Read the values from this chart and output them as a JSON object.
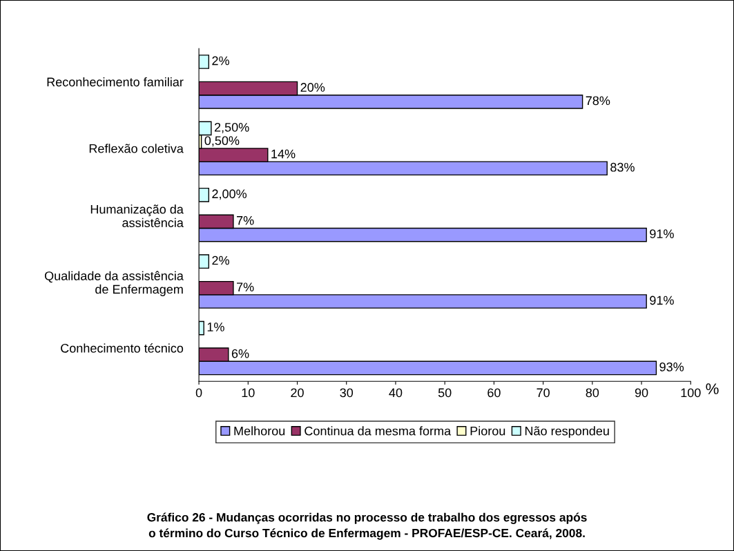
{
  "chart_data": {
    "type": "bar",
    "orientation": "horizontal",
    "title": "Gráfico 26 - Mudanças ocorridas no processo de trabalho dos egressos após\no término do Curso Técnico de Enfermagem - PROFAE/ESP-CE. Ceará, 2008.",
    "xlabel": "%",
    "categories": [
      "Reconhecimento familiar",
      "Reflexão coletiva",
      "Humanização da\nassistência",
      "Qualidade da assistência\nde Enfermagem",
      "Conhecimento técnico"
    ],
    "series": [
      {
        "name": "Melhorou",
        "color": "#9999ff",
        "values": [
          78,
          83,
          91,
          91,
          93
        ],
        "value_labels": [
          "78%",
          "83%",
          "91%",
          "91%",
          "93%"
        ]
      },
      {
        "name": "Continua da mesma forma",
        "color": "#993366",
        "values": [
          20,
          14,
          7,
          7,
          6
        ],
        "value_labels": [
          "20%",
          "14%",
          "7%",
          "7%",
          "6%"
        ]
      },
      {
        "name": "Piorou",
        "color": "#ffffcc",
        "values": [
          null,
          0.5,
          null,
          null,
          null
        ],
        "value_labels": [
          null,
          "0,50%",
          null,
          null,
          null
        ]
      },
      {
        "name": "Não respondeu",
        "color": "#ccffff",
        "values": [
          2,
          2.5,
          2,
          2,
          1
        ],
        "value_labels": [
          "2%",
          "2,50%",
          "2,00%",
          "2%",
          "1%"
        ]
      }
    ],
    "xlim": [
      0,
      100
    ],
    "xticks": [
      0,
      10,
      20,
      30,
      40,
      50,
      60,
      70,
      80,
      90,
      100
    ],
    "grid": false,
    "legend": "bottom"
  }
}
